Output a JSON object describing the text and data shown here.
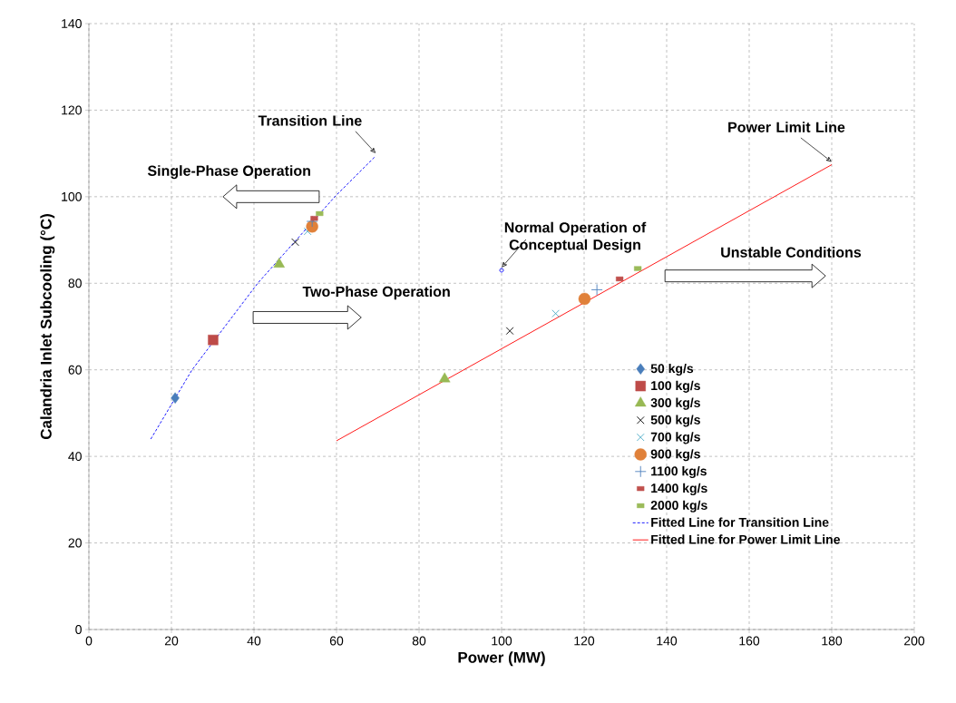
{
  "chart_data": {
    "type": "scatter",
    "xlabel": "Power (MW)",
    "ylabel": "Calandria Inlet Subcooling (°C)",
    "xlim": [
      0,
      200
    ],
    "xticks": [
      0,
      20,
      40,
      60,
      80,
      100,
      120,
      140,
      160,
      180,
      200
    ],
    "ylim": [
      0,
      140
    ],
    "yticks": [
      0,
      20,
      40,
      60,
      80,
      100,
      120,
      140
    ],
    "grid": true,
    "legend": "bottom right",
    "series": [
      {
        "name": "50 kg/s",
        "color": "#4a7ebb",
        "marker": "diamond",
        "x": [
          20.9
        ],
        "values": [
          53.5
        ]
      },
      {
        "name": "100 kg/s",
        "color": "#be4b48",
        "marker": "square",
        "x": [
          30.1
        ],
        "values": [
          66.9
        ]
      },
      {
        "name": "300 kg/s",
        "color": "#98b954",
        "marker": "triangle",
        "x": [
          46.1,
          86.2
        ],
        "values": [
          84.4,
          57.9
        ]
      },
      {
        "name": "500 kg/s",
        "color": "#000000",
        "marker": "cross",
        "x": [
          50.0,
          102.0
        ],
        "values": [
          89.5,
          69.0
        ]
      },
      {
        "name": "700 kg/s",
        "color": "#4bacc6",
        "marker": "cross",
        "x": [
          53.0,
          113.1
        ],
        "values": [
          92.0,
          73.0
        ]
      },
      {
        "name": "900 kg/s",
        "color": "#e0813a",
        "marker": "circle",
        "x": [
          54.1,
          120.1
        ],
        "values": [
          93.1,
          76.4
        ]
      },
      {
        "name": "1100 kg/s",
        "color": "#4f81bd",
        "marker": "plus",
        "x": [
          54.1,
          123.1
        ],
        "values": [
          94.3,
          78.5
        ]
      },
      {
        "name": "1400 kg/s",
        "color": "#c0504d",
        "marker": "square",
        "x": [
          54.6,
          128.6
        ],
        "values": [
          95.0,
          81.0
        ]
      },
      {
        "name": "2000 kg/s",
        "color": "#9bbb59",
        "marker": "square",
        "x": [
          55.9,
          133.0
        ],
        "values": [
          96.1,
          83.4
        ]
      },
      {
        "name": "Fitted Line for Transition Line",
        "type": "line",
        "color": "#0000ff",
        "line_style": "dashed",
        "marker": "none",
        "x": [
          15,
          25,
          40.9,
          59.6,
          69.5
        ],
        "values": [
          44,
          60,
          80,
          100,
          109.4
        ]
      },
      {
        "name": "Fitted Line for Power Limit Line",
        "type": "line",
        "color": "#ff0000",
        "line_style": "solid",
        "marker": "none",
        "x": [
          60,
          180
        ],
        "values": [
          43.6,
          107.4
        ]
      },
      {
        "type": "scatter",
        "color": "#0000ff",
        "marker": "circle",
        "x": [
          100
        ],
        "values": [
          83
        ]
      }
    ],
    "annotations": [
      {
        "text": "Transition Line",
        "x": 69.5,
        "y": 109.4
      },
      {
        "text": "Power Limit Line",
        "x": 180,
        "y": 107.4
      },
      {
        "text": "Normal Operation of Conceptual Design",
        "x": 100,
        "y": 83
      },
      "Single-Phase Operation",
      "Two-Phase Operation",
      "Unstable Conditions"
    ]
  }
}
